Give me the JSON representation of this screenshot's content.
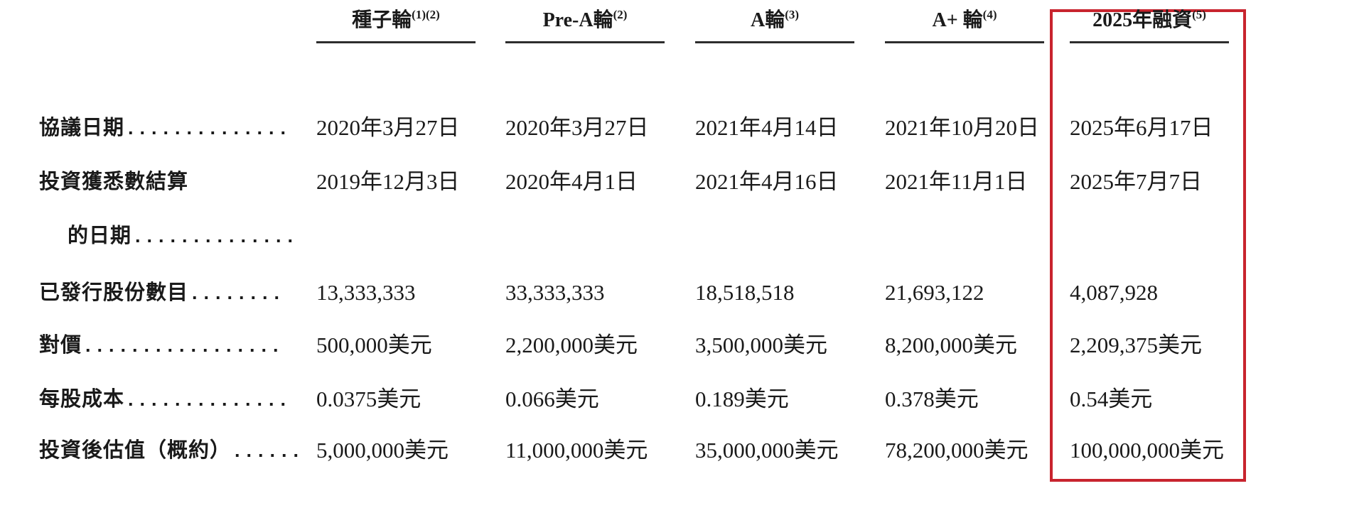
{
  "colors": {
    "text": "#1a1a1a",
    "header_underline": "#2d2d2d",
    "highlight_border": "#c8242e"
  },
  "table": {
    "columns": [
      {
        "label": "種子輪",
        "sup": "(1)(2)"
      },
      {
        "label": "Pre-A輪",
        "sup": "(2)"
      },
      {
        "label": "A輪",
        "sup": "(3)"
      },
      {
        "label": "A+ 輪",
        "sup": "(4)"
      },
      {
        "label": "2025年融資",
        "sup": "(5)",
        "highlighted": true
      }
    ],
    "rows": [
      {
        "label": "協議日期",
        "leader": "..............",
        "values": [
          "2020年3月27日",
          "2020年3月27日",
          "2021年4月14日",
          "2021年10月20日",
          "2025年6月17日"
        ]
      },
      {
        "label": "投資獲悉數結算",
        "label_line2": "的日期",
        "leader2": "..............",
        "values": [
          "2019年12月3日",
          "2020年4月1日",
          "2021年4月16日",
          "2021年11月1日",
          "2025年7月7日"
        ]
      },
      {
        "label": "已發行股份數目",
        "leader": "........",
        "values": [
          "13,333,333",
          "33,333,333",
          "18,518,518",
          "21,693,122",
          "4,087,928"
        ]
      },
      {
        "label": "對價",
        "leader": ".................",
        "values": [
          "500,000美元",
          "2,200,000美元",
          "3,500,000美元",
          "8,200,000美元",
          "2,209,375美元"
        ]
      },
      {
        "label": "每股成本",
        "leader": "..............",
        "values": [
          "0.0375美元",
          "0.066美元",
          "0.189美元",
          "0.378美元",
          "0.54美元"
        ]
      },
      {
        "label": "投資後估值（概約）",
        "leader": "......",
        "values": [
          "5,000,000美元",
          "11,000,000美元",
          "35,000,000美元",
          "78,200,000美元",
          "100,000,000美元"
        ]
      }
    ]
  }
}
